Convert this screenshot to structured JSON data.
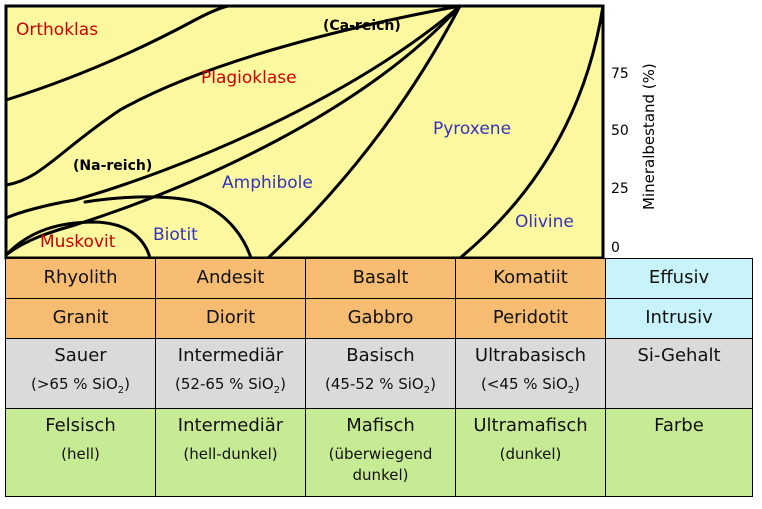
{
  "diagram": {
    "y_axis_label": "Mineralbestand (%)",
    "y_ticks": [
      "75",
      "50",
      "25",
      "0"
    ],
    "regions": {
      "orthoklas": "Orthoklas",
      "ca_reich": "(Ca-reich)",
      "plagioklase": "Plagioklase",
      "pyroxene": "Pyroxene",
      "na_reich": "(Na-reich)",
      "amphibole": "Amphibole",
      "olivine": "Olivine",
      "biotit": "Biotit",
      "muskovit": "Muskovit"
    },
    "colors": {
      "fill": "#FCF8A0",
      "red_label": "#CC0000",
      "blue_label": "#3333BB",
      "outline": "#000000"
    }
  },
  "table": {
    "effusive": {
      "rhyolith": "Rhyolith",
      "andesit": "Andesit",
      "basalt": "Basalt",
      "komatiit": "Komatiit",
      "category": "Effusiv"
    },
    "intrusive": {
      "granit": "Granit",
      "diorit": "Diorit",
      "gabbro": "Gabbro",
      "peridotit": "Peridotit",
      "category": "Intrusiv"
    },
    "silica": {
      "sauer": "Sauer",
      "sauer_range": "(>65 % SiO",
      "intermediaer": "Intermediär",
      "intermediaer_range": "(52-65 % SiO",
      "basisch": "Basisch",
      "basisch_range": "(45-52 % SiO",
      "ultrabasisch": "Ultrabasisch",
      "ultrabasisch_range": "(<45 % SiO",
      "subscript": "2",
      "close": ")",
      "category": "Si-Gehalt"
    },
    "color": {
      "felsisch": "Felsisch",
      "felsisch_note": "(hell)",
      "intermediaer": "Intermediär",
      "intermediaer_note": "(hell-dunkel)",
      "mafisch": "Mafisch",
      "mafisch_note_1": "(überwiegend",
      "mafisch_note_2": "dunkel)",
      "ultramafisch": "Ultramafisch",
      "ultramafisch_note": "(dunkel)",
      "category": "Farbe"
    },
    "row_colors": {
      "rock": "#F5BC72",
      "category": "#C9F3FA",
      "silica": "#DADADA",
      "color": "#C6EB94"
    }
  }
}
